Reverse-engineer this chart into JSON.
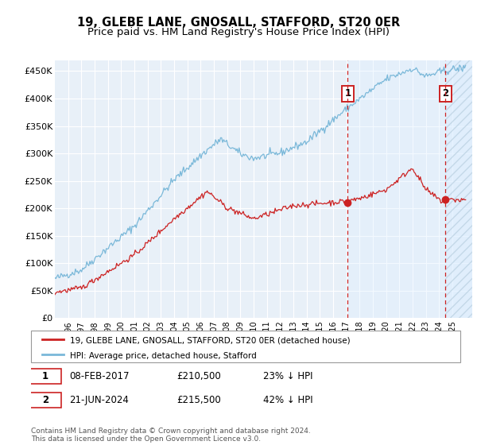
{
  "title": "19, GLEBE LANE, GNOSALL, STAFFORD, ST20 0ER",
  "subtitle": "Price paid vs. HM Land Registry's House Price Index (HPI)",
  "ylabel_ticks": [
    "£0",
    "£50K",
    "£100K",
    "£150K",
    "£200K",
    "£250K",
    "£300K",
    "£350K",
    "£400K",
    "£450K"
  ],
  "ytick_values": [
    0,
    50000,
    100000,
    150000,
    200000,
    250000,
    300000,
    350000,
    400000,
    450000
  ],
  "ylim": [
    0,
    470000
  ],
  "xlim_start": 1995.0,
  "xlim_end": 2026.5,
  "xtick_years": [
    1996,
    1997,
    1998,
    1999,
    2000,
    2001,
    2002,
    2003,
    2004,
    2005,
    2006,
    2007,
    2008,
    2009,
    2010,
    2011,
    2012,
    2013,
    2014,
    2015,
    2016,
    2017,
    2018,
    2019,
    2020,
    2021,
    2022,
    2023,
    2024,
    2025
  ],
  "hpi_color": "#7ab8d9",
  "price_color": "#cc2222",
  "marker1_date": 2017.1,
  "marker2_date": 2024.47,
  "marker1_price": 210500,
  "marker2_price": 215500,
  "background_chart": "#e8f0f8",
  "legend_label1": "19, GLEBE LANE, GNOSALL, STAFFORD, ST20 0ER (detached house)",
  "legend_label2": "HPI: Average price, detached house, Stafford",
  "table_row1": [
    "1",
    "08-FEB-2017",
    "£210,500",
    "23% ↓ HPI"
  ],
  "table_row2": [
    "2",
    "21-JUN-2024",
    "£215,500",
    "42% ↓ HPI"
  ],
  "footnote": "Contains HM Land Registry data © Crown copyright and database right 2024.\nThis data is licensed under the Open Government Licence v3.0.",
  "title_fontsize": 10.5,
  "subtitle_fontsize": 9.5
}
